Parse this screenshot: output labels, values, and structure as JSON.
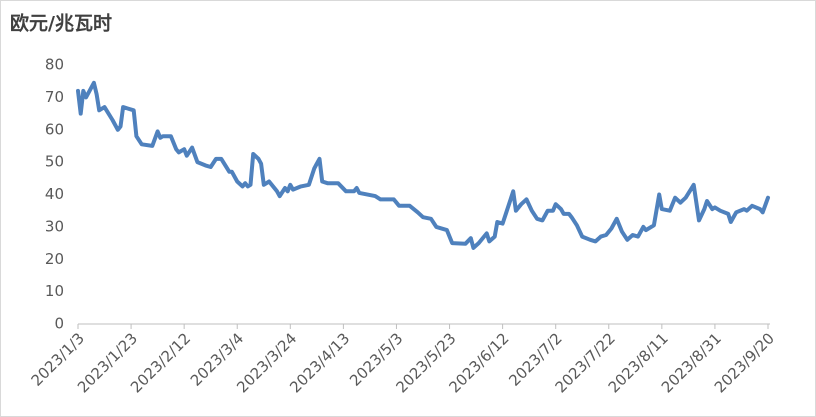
{
  "chart_data": {
    "type": "line",
    "y_label": "欧元/兆瓦时",
    "x": [
      "2023/1/3",
      "2023/1/4",
      "2023/1/5",
      "2023/1/6",
      "2023/1/9",
      "2023/1/10",
      "2023/1/11",
      "2023/1/13",
      "2023/1/16",
      "2023/1/18",
      "2023/1/19",
      "2023/1/20",
      "2023/1/24",
      "2023/1/25",
      "2023/1/27",
      "2023/1/31",
      "2023/2/2",
      "2023/2/3",
      "2023/2/4",
      "2023/2/7",
      "2023/2/9",
      "2023/2/10",
      "2023/2/12",
      "2023/2/13",
      "2023/2/15",
      "2023/2/17",
      "2023/2/20",
      "2023/2/22",
      "2023/2/24",
      "2023/2/26",
      "2023/3/1",
      "2023/3/2",
      "2023/3/4",
      "2023/3/6",
      "2023/3/7",
      "2023/3/8",
      "2023/3/9",
      "2023/3/10",
      "2023/3/12",
      "2023/3/13",
      "2023/3/14",
      "2023/3/16",
      "2023/3/19",
      "2023/3/20",
      "2023/3/22",
      "2023/3/23",
      "2023/3/24",
      "2023/3/25",
      "2023/3/28",
      "2023/3/31",
      "2023/4/2",
      "2023/4/3",
      "2023/4/4",
      "2023/4/5",
      "2023/4/7",
      "2023/4/11",
      "2023/4/14",
      "2023/4/17",
      "2023/4/18",
      "2023/4/19",
      "2023/4/25",
      "2023/4/27",
      "2023/5/2",
      "2023/5/4",
      "2023/5/8",
      "2023/5/11",
      "2023/5/13",
      "2023/5/16",
      "2023/5/18",
      "2023/5/22",
      "2023/5/24",
      "2023/5/29",
      "2023/5/31",
      "2023/6/1",
      "2023/6/3",
      "2023/6/6",
      "2023/6/7",
      "2023/6/9",
      "2023/6/10",
      "2023/6/12",
      "2023/6/15",
      "2023/6/16",
      "2023/6/17",
      "2023/6/19",
      "2023/6/21",
      "2023/6/23",
      "2023/6/25",
      "2023/6/27",
      "2023/6/29",
      "2023/7/1",
      "2023/7/2",
      "2023/7/4",
      "2023/7/5",
      "2023/7/7",
      "2023/7/8",
      "2023/7/10",
      "2023/7/12",
      "2023/7/15",
      "2023/7/17",
      "2023/7/19",
      "2023/7/21",
      "2023/7/23",
      "2023/7/25",
      "2023/7/27",
      "2023/7/29",
      "2023/7/31",
      "2023/8/2",
      "2023/8/4",
      "2023/8/5",
      "2023/8/8",
      "2023/8/10",
      "2023/8/11",
      "2023/8/14",
      "2023/8/16",
      "2023/8/18",
      "2023/8/20",
      "2023/8/23",
      "2023/8/25",
      "2023/8/27",
      "2023/8/28",
      "2023/8/30",
      "2023/8/31",
      "2023/9/2",
      "2023/9/5",
      "2023/9/6",
      "2023/9/8",
      "2023/9/11",
      "2023/9/12",
      "2023/9/14",
      "2023/9/17",
      "2023/9/18",
      "2023/9/20"
    ],
    "series": [
      {
        "name": "欧元/兆瓦时",
        "color": "#4f81bd",
        "values": [
          72,
          65,
          72,
          70,
          74.5,
          71,
          66,
          67,
          63,
          60,
          61,
          67,
          66,
          58,
          55.5,
          55,
          59.5,
          57.5,
          58,
          58,
          54,
          53,
          54,
          52,
          54.5,
          50,
          49,
          48.5,
          51,
          51,
          47,
          47,
          44,
          42.5,
          43.5,
          42.5,
          43,
          52.5,
          51,
          49.5,
          43,
          44,
          41,
          39.5,
          42,
          41,
          43,
          41.5,
          42.5,
          43,
          48,
          49.5,
          51,
          44,
          43.5,
          43.5,
          41,
          41,
          42,
          40.5,
          39.5,
          38.5,
          38.5,
          36.5,
          36.5,
          34.5,
          33,
          32.5,
          30,
          29,
          25,
          24.8,
          26.5,
          23.5,
          25,
          28,
          25.5,
          27,
          31.5,
          31,
          38.5,
          41,
          35,
          37,
          38.5,
          35,
          32.5,
          32,
          35,
          35,
          37,
          35.5,
          34,
          34,
          33,
          30.5,
          27,
          26,
          25.5,
          27,
          27.5,
          29.5,
          32.5,
          28.5,
          26,
          27.5,
          27,
          30,
          29,
          30.5,
          40,
          35.5,
          35,
          39,
          37.5,
          39,
          43,
          32,
          35.5,
          38,
          35.5,
          36,
          35,
          34,
          31.5,
          34.5,
          35.5,
          35,
          36.5,
          35.5,
          34.5,
          39
        ]
      }
    ],
    "xlim": [
      "2023/1/3",
      "2023/9/20"
    ],
    "xticks": [
      "2023/1/3",
      "2023/1/23",
      "2023/2/12",
      "2023/3/4",
      "2023/3/24",
      "2023/4/13",
      "2023/5/3",
      "2023/5/23",
      "2023/6/12",
      "2023/7/2",
      "2023/7/22",
      "2023/8/11",
      "2023/8/31",
      "2023/9/20"
    ],
    "ylim": [
      0,
      80
    ],
    "yticks": [
      0,
      10,
      20,
      30,
      40,
      50,
      60,
      70,
      80
    ],
    "grid": false
  }
}
